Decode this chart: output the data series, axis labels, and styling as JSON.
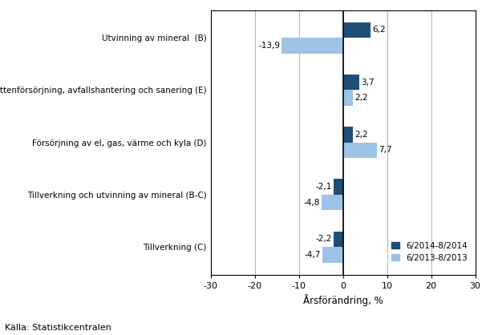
{
  "categories": [
    "Tillverkning (C)",
    "Tillverkning och utvinning av mineral (B-C)",
    "Försörjning av el, gas, värme och kyla (D)",
    "Vattenförsörjning, avfallshantering och sanering (E)",
    "Utvinning av mineral  (B)"
  ],
  "values_2014": [
    -2.2,
    -2.1,
    2.2,
    3.7,
    6.2
  ],
  "values_2013": [
    -4.7,
    -4.8,
    7.7,
    2.2,
    -13.9
  ],
  "labels_2014": [
    "-2,2",
    "-2,1",
    "2,2",
    "3,7",
    "6,2"
  ],
  "labels_2013": [
    "-4,7",
    "-4,8",
    "7,7",
    "2,2",
    "-13,9"
  ],
  "color_2014": "#1F4E79",
  "color_2013": "#9DC3E6",
  "xlabel": "Årsförändring, %",
  "legend_2014": "6/2014-8/2014",
  "legend_2013": "6/2013-8/2013",
  "source": "Källa: Statistikcentralen",
  "xlim": [
    -30,
    30
  ],
  "xticks": [
    -30,
    -20,
    -10,
    0,
    10,
    20,
    30
  ],
  "bar_height": 0.3,
  "background_color": "#ffffff",
  "plot_bg": "#ffffff"
}
